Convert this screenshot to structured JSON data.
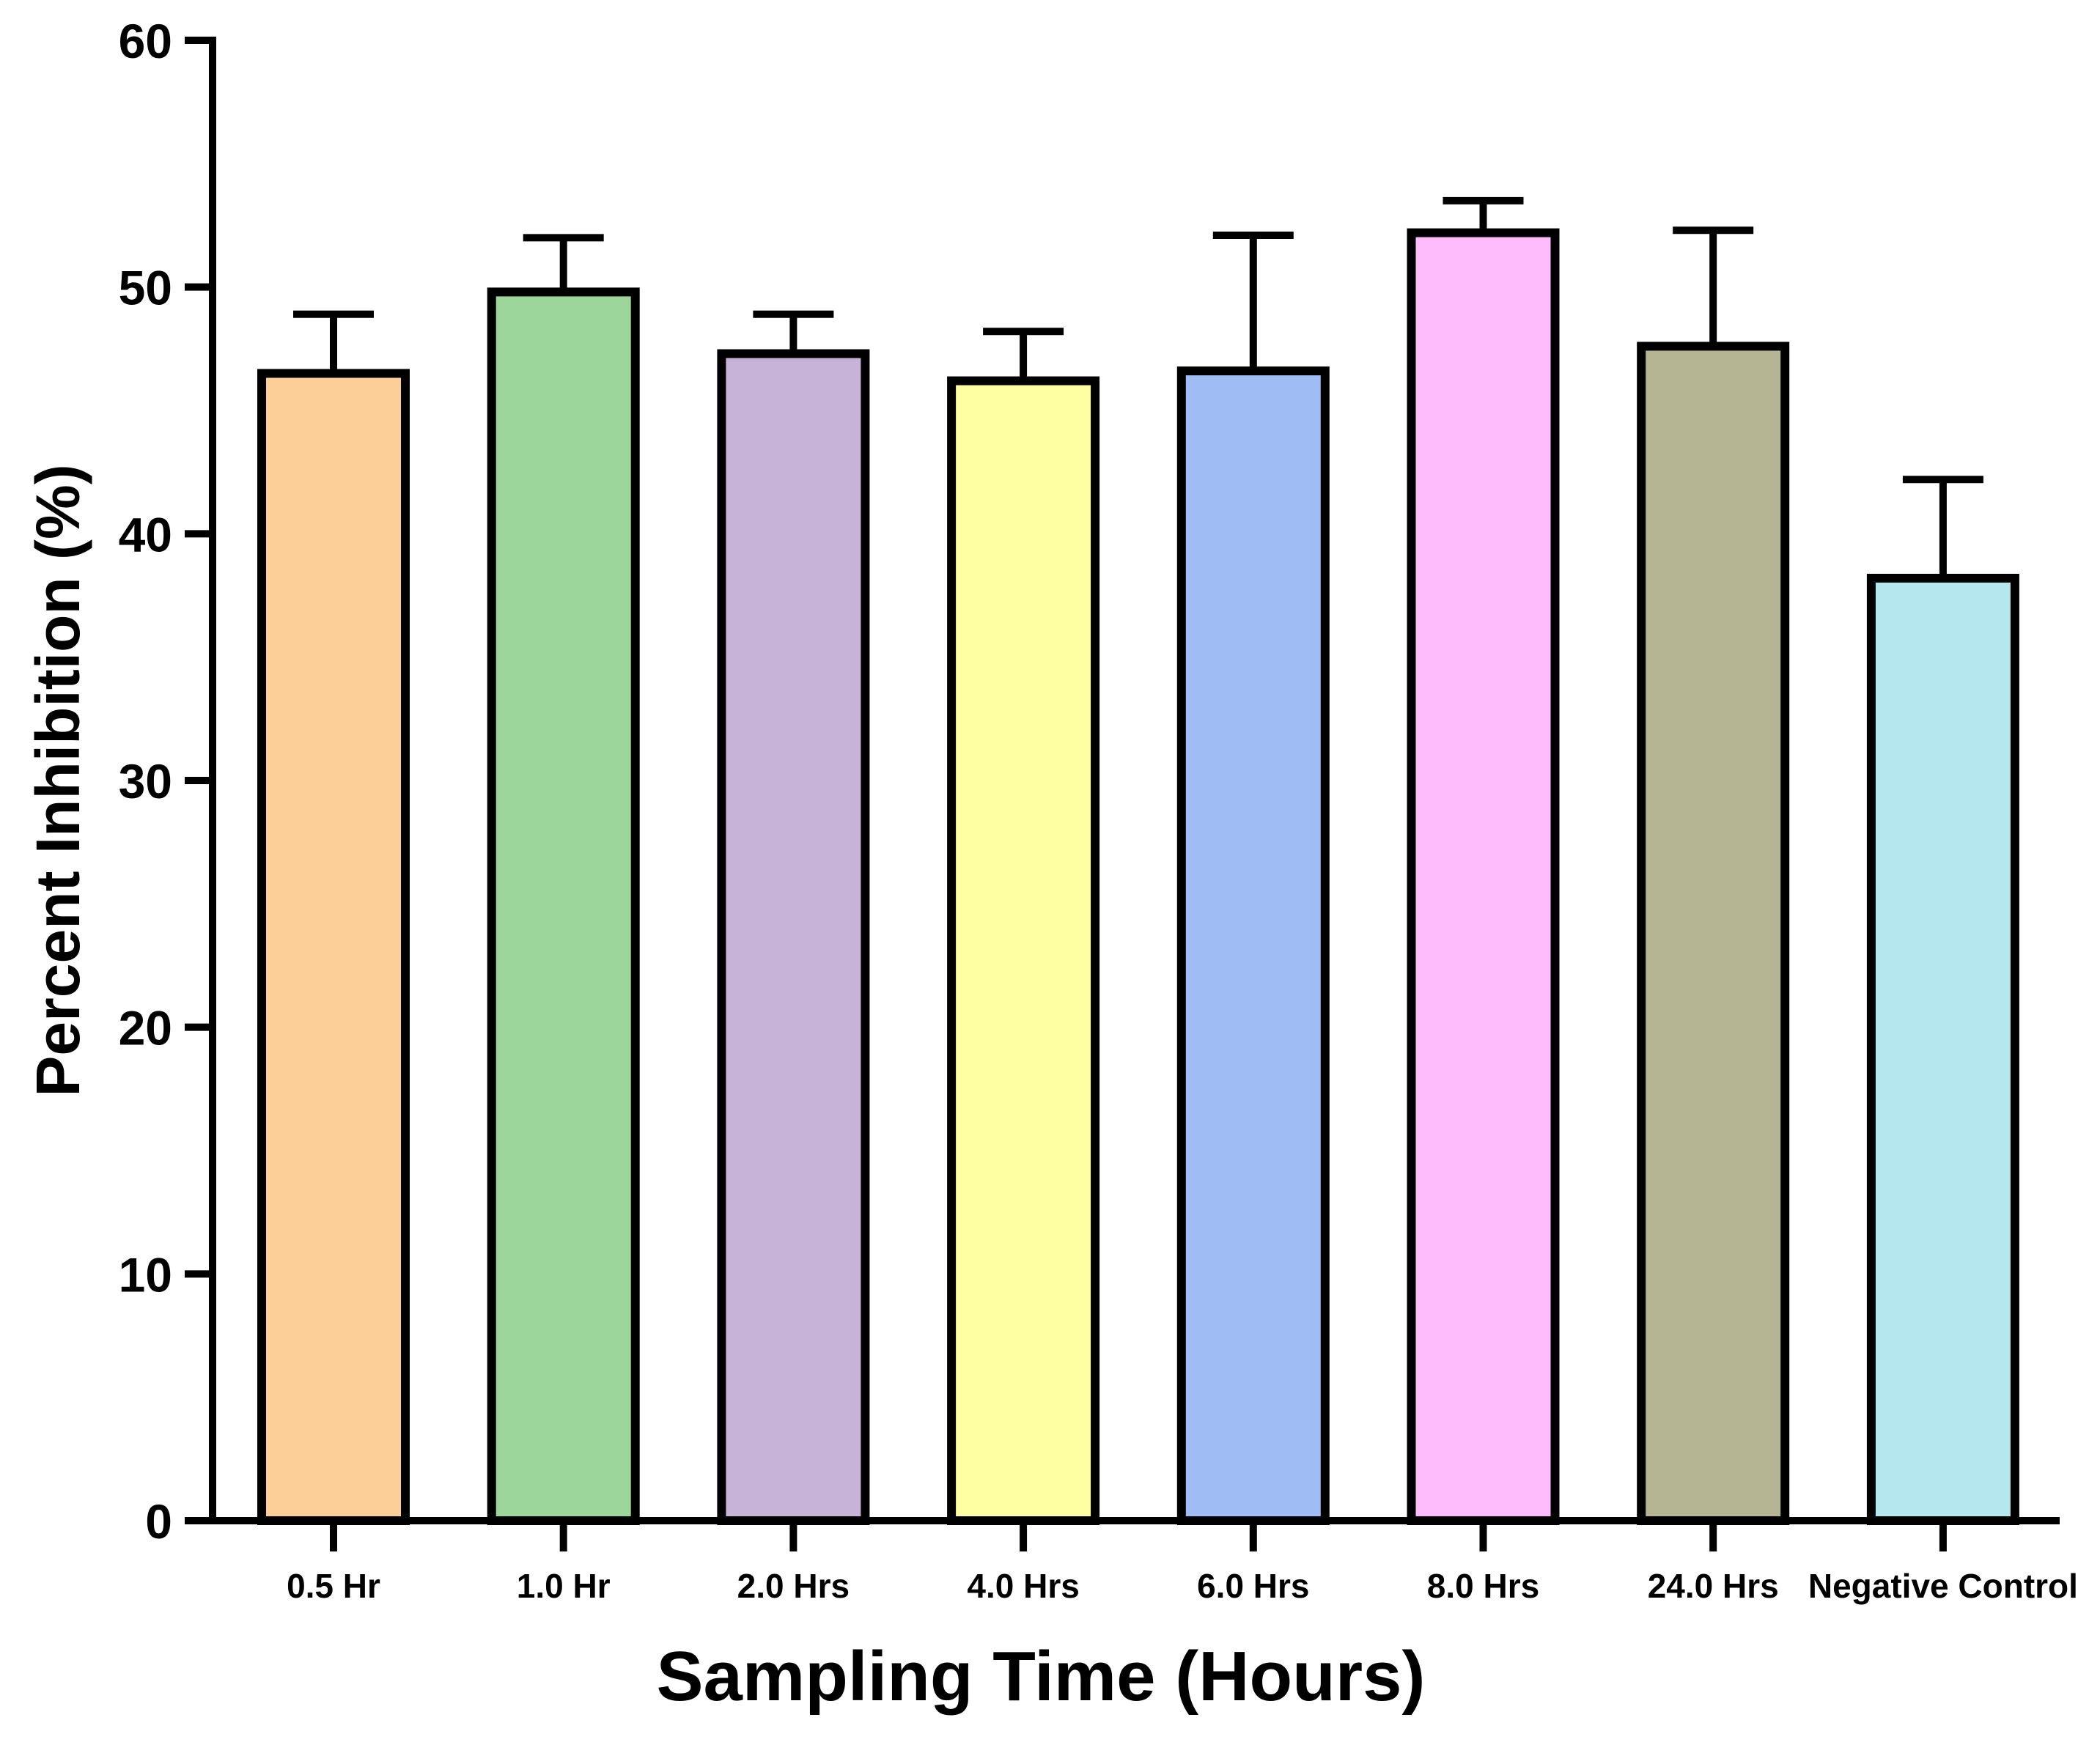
{
  "chart_data": {
    "type": "bar",
    "title": "",
    "xlabel": "Sampling Time (Hours)",
    "ylabel": "Percent Inhibition (%)",
    "ylim": [
      0,
      60
    ],
    "yticks": [
      "0",
      "10",
      "20",
      "30",
      "40",
      "50",
      "60"
    ],
    "categories": [
      "0.5 Hr",
      "1.0 Hr",
      "2.0 Hrs",
      "4.0 Hrs",
      "6.0 Hrs",
      "8.0 Hrs",
      "24.0 Hrs",
      "Negative Control"
    ],
    "values": [
      46.5,
      49.8,
      47.3,
      46.2,
      46.6,
      52.2,
      47.6,
      38.2
    ],
    "error_upper": [
      2.4,
      2.2,
      1.6,
      2.0,
      5.5,
      1.3,
      4.7,
      4.0
    ],
    "colors": [
      "#FDCF98",
      "#9DD69B",
      "#C6B3D7",
      "#FEFEA3",
      "#9FBCF5",
      "#FEBCFC",
      "#B5B593",
      "#B5E7EE"
    ],
    "grid": false,
    "legend": "none"
  }
}
